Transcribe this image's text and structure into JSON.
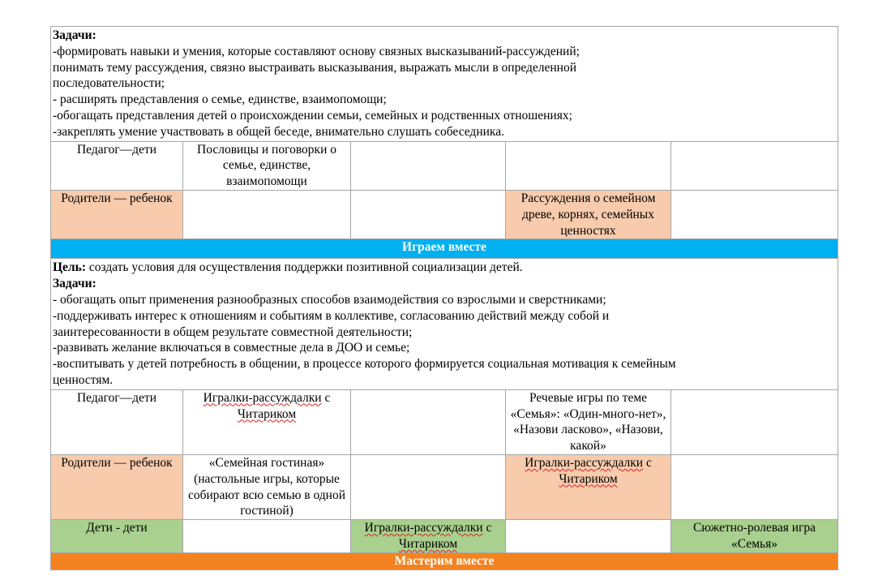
{
  "section1": {
    "tasks_label": "Задачи:",
    "tasks": [
      "-формировать навыки и умения, которые составляют основу связных высказываний-рассуждений;",
      "понимать тему рассуждения, связно выстраивать высказывания, выражать мысли в определенной последовательности;",
      "- расширять представления о семье, единстве, взаимопомощи;",
      "-обогащать представления детей о происхождении семьи, семейных и родственных отношениях;",
      "-закреплять умение участвовать в общей беседе, внимательно слушать собеседника."
    ],
    "rows": [
      {
        "role": "Педагог—дети",
        "cells": [
          "Пословицы и поговорки о семье, единстве, взаимопомощи",
          "",
          "",
          ""
        ]
      },
      {
        "role": "Родители — ребенок",
        "cells": [
          "",
          "",
          "Рассуждения о семейном древе, корнях, семейных ценностях",
          ""
        ]
      }
    ]
  },
  "header_play": "Играем вместе",
  "section2": {
    "goal_label": "Цель:",
    "goal": " создать условия для осуществления поддержки позитивной социализации детей.",
    "tasks_label": "Задачи:",
    "tasks": [
      "- обогащать опыт применения разнообразных способов взаимодействия со взрослыми и сверстниками;",
      "-поддерживать интерес к отношениям и событиям в коллективе, согласованию действий между собой и заинтересованности в общем результате совместной деятельности;",
      "-развивать желание включаться в совместные дела в ДОО и семье;",
      "-воспитывать у детей потребность в общении, в процессе которого формируется социальная мотивация к семейным ценностям."
    ],
    "rows": [
      {
        "role": "Педагог—дети",
        "cells": [
          [
            {
              "t": "Игралки-рассуждалки",
              "err": true
            },
            {
              "t": " с "
            },
            {
              "t": "Читариком",
              "err": true
            }
          ],
          "",
          "Речевые игры по теме «Семья»: «Один-много-нет», «Назови ласково», «Назови, какой»",
          ""
        ]
      },
      {
        "role": "Родители — ребенок",
        "cells": [
          "«Семейная гостиная» (настольные игры, которые собирают всю семью в одной гостиной)",
          "",
          [
            {
              "t": "Игралки-рассуждалки",
              "err": true
            },
            {
              "t": " с "
            },
            {
              "t": "Читариком",
              "err": true
            }
          ],
          ""
        ]
      },
      {
        "role": "Дети - дети",
        "cells": [
          "",
          [
            {
              "t": "Игралки-рассуждалки",
              "err": true
            },
            {
              "t": " с "
            },
            {
              "t": "Читариком",
              "err": true
            }
          ],
          "",
          "Сюжетно-ролевая игра «Семья»"
        ]
      }
    ]
  },
  "header_craft": "Мастерим вместе",
  "colors": {
    "peach": "#f8cbad",
    "blue": "#00b0f0",
    "green": "#a9d08e",
    "orange": "#f58220",
    "spellcheck": "#e02020"
  }
}
